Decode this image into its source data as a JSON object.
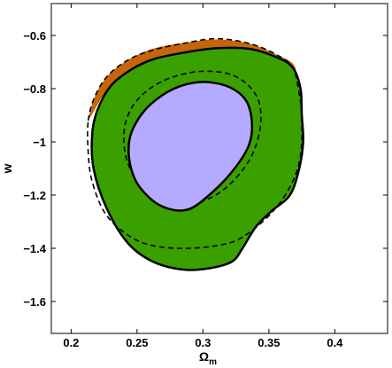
{
  "chart_data": {
    "type": "contour",
    "xlabel": "Ω_m",
    "xlabel_main": "Ω",
    "xlabel_sub": "m",
    "ylabel": "w",
    "xlim": [
      0.185,
      0.44
    ],
    "ylim": [
      -1.72,
      -0.48
    ],
    "xticks": [
      0.2,
      0.25,
      0.3,
      0.35,
      0.4
    ],
    "xtick_labels": [
      "0.2",
      "0.25",
      "0.3",
      "0.35",
      "0.4"
    ],
    "yticks": [
      -1.6,
      -1.4,
      -1.2,
      -1.0,
      -0.8,
      -0.6
    ],
    "ytick_labels": [
      "−1.6",
      "−1.4",
      "−1.2",
      "−1",
      "−0.8",
      "−0.6"
    ],
    "grid": false,
    "colors": {
      "outer_orange": "#c8640a",
      "outer_green": "#3aa000",
      "inner_purple": "#b4aaff",
      "line": "#000000"
    },
    "series": [
      {
        "style": "filled-orange",
        "points": [
          [
            0.214,
            -0.91
          ],
          [
            0.218,
            -0.83
          ],
          [
            0.228,
            -0.75
          ],
          [
            0.244,
            -0.69
          ],
          [
            0.262,
            -0.65
          ],
          [
            0.285,
            -0.628
          ],
          [
            0.31,
            -0.615
          ],
          [
            0.335,
            -0.63
          ],
          [
            0.355,
            -0.67
          ],
          [
            0.37,
            -0.72
          ],
          [
            0.365,
            -0.82
          ],
          [
            0.33,
            -0.73
          ],
          [
            0.3,
            -0.68
          ],
          [
            0.27,
            -0.69
          ],
          [
            0.245,
            -0.74
          ],
          [
            0.228,
            -0.8
          ]
        ]
      },
      {
        "style": "filled-green-solid",
        "points": [
          [
            0.216,
            -0.97
          ],
          [
            0.22,
            -0.88
          ],
          [
            0.23,
            -0.79
          ],
          [
            0.245,
            -0.73
          ],
          [
            0.262,
            -0.69
          ],
          [
            0.285,
            -0.665
          ],
          [
            0.31,
            -0.648
          ],
          [
            0.335,
            -0.65
          ],
          [
            0.355,
            -0.68
          ],
          [
            0.368,
            -0.72
          ],
          [
            0.374,
            -0.8
          ],
          [
            0.375,
            -0.9
          ],
          [
            0.376,
            -1.0
          ],
          [
            0.373,
            -1.1
          ],
          [
            0.366,
            -1.2
          ],
          [
            0.352,
            -1.26
          ],
          [
            0.34,
            -1.32
          ],
          [
            0.33,
            -1.4
          ],
          [
            0.322,
            -1.45
          ],
          [
            0.305,
            -1.475
          ],
          [
            0.285,
            -1.48
          ],
          [
            0.262,
            -1.45
          ],
          [
            0.243,
            -1.38
          ],
          [
            0.227,
            -1.25
          ],
          [
            0.217,
            -1.1
          ]
        ]
      },
      {
        "style": "dashed-outer",
        "points": [
          [
            0.213,
            -0.92
          ],
          [
            0.218,
            -0.83
          ],
          [
            0.228,
            -0.75
          ],
          [
            0.244,
            -0.69
          ],
          [
            0.262,
            -0.655
          ],
          [
            0.285,
            -0.63
          ],
          [
            0.31,
            -0.612
          ],
          [
            0.335,
            -0.63
          ],
          [
            0.355,
            -0.67
          ],
          [
            0.368,
            -0.72
          ],
          [
            0.373,
            -0.82
          ],
          [
            0.375,
            -0.92
          ],
          [
            0.374,
            -1.05
          ],
          [
            0.368,
            -1.15
          ],
          [
            0.355,
            -1.25
          ],
          [
            0.338,
            -1.33
          ],
          [
            0.32,
            -1.38
          ],
          [
            0.29,
            -1.4
          ],
          [
            0.262,
            -1.39
          ],
          [
            0.243,
            -1.35
          ],
          [
            0.226,
            -1.27
          ],
          [
            0.216,
            -1.15
          ],
          [
            0.213,
            -1.04
          ]
        ]
      },
      {
        "style": "dashed-inner",
        "points": [
          [
            0.24,
            -0.97
          ],
          [
            0.245,
            -0.88
          ],
          [
            0.257,
            -0.81
          ],
          [
            0.275,
            -0.76
          ],
          [
            0.298,
            -0.735
          ],
          [
            0.32,
            -0.745
          ],
          [
            0.335,
            -0.79
          ],
          [
            0.343,
            -0.86
          ],
          [
            0.343,
            -0.96
          ],
          [
            0.335,
            -1.07
          ],
          [
            0.318,
            -1.17
          ],
          [
            0.298,
            -1.225
          ],
          [
            0.275,
            -1.225
          ],
          [
            0.255,
            -1.17
          ],
          [
            0.243,
            -1.08
          ]
        ]
      },
      {
        "style": "filled-purple",
        "points": [
          [
            0.244,
            -1.0
          ],
          [
            0.249,
            -0.93
          ],
          [
            0.26,
            -0.86
          ],
          [
            0.278,
            -0.8
          ],
          [
            0.298,
            -0.775
          ],
          [
            0.318,
            -0.79
          ],
          [
            0.332,
            -0.84
          ],
          [
            0.337,
            -0.92
          ],
          [
            0.335,
            -1.01
          ],
          [
            0.324,
            -1.1
          ],
          [
            0.307,
            -1.19
          ],
          [
            0.288,
            -1.255
          ],
          [
            0.268,
            -1.24
          ],
          [
            0.252,
            -1.17
          ],
          [
            0.245,
            -1.09
          ]
        ]
      }
    ]
  }
}
